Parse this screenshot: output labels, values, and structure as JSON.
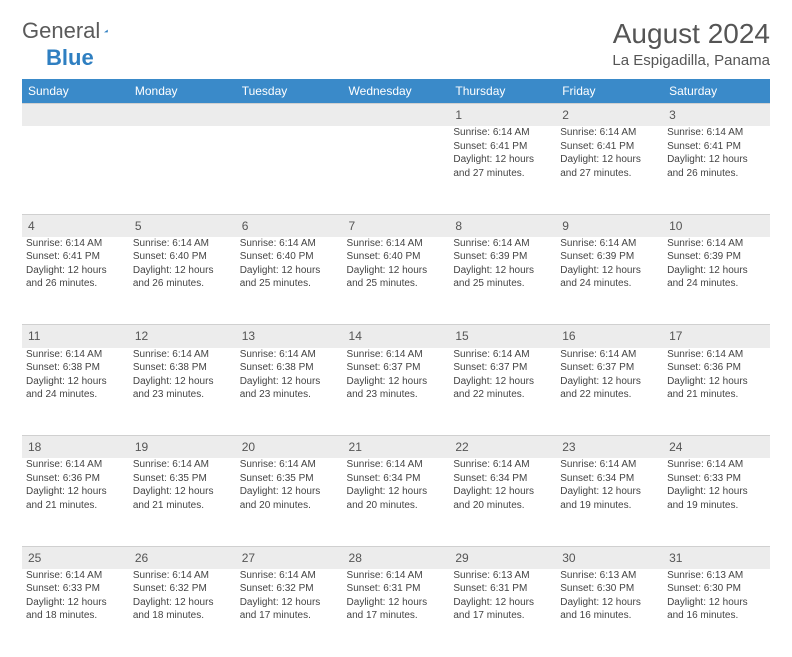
{
  "logo": {
    "text1": "General",
    "text2": "Blue"
  },
  "title": "August 2024",
  "location": "La Espigadilla, Panama",
  "colors": {
    "header_bg": "#3a8ac9",
    "header_text": "#ffffff",
    "daynum_bg": "#ececec",
    "text": "#444444",
    "logo_gray": "#5a5a5a",
    "logo_blue": "#2f7fc1"
  },
  "weekdays": [
    "Sunday",
    "Monday",
    "Tuesday",
    "Wednesday",
    "Thursday",
    "Friday",
    "Saturday"
  ],
  "weeks": [
    {
      "nums": [
        "",
        "",
        "",
        "",
        "1",
        "2",
        "3"
      ],
      "cells": [
        null,
        null,
        null,
        null,
        {
          "sr": "Sunrise: 6:14 AM",
          "ss": "Sunset: 6:41 PM",
          "dl": "Daylight: 12 hours and 27 minutes."
        },
        {
          "sr": "Sunrise: 6:14 AM",
          "ss": "Sunset: 6:41 PM",
          "dl": "Daylight: 12 hours and 27 minutes."
        },
        {
          "sr": "Sunrise: 6:14 AM",
          "ss": "Sunset: 6:41 PM",
          "dl": "Daylight: 12 hours and 26 minutes."
        }
      ]
    },
    {
      "nums": [
        "4",
        "5",
        "6",
        "7",
        "8",
        "9",
        "10"
      ],
      "cells": [
        {
          "sr": "Sunrise: 6:14 AM",
          "ss": "Sunset: 6:41 PM",
          "dl": "Daylight: 12 hours and 26 minutes."
        },
        {
          "sr": "Sunrise: 6:14 AM",
          "ss": "Sunset: 6:40 PM",
          "dl": "Daylight: 12 hours and 26 minutes."
        },
        {
          "sr": "Sunrise: 6:14 AM",
          "ss": "Sunset: 6:40 PM",
          "dl": "Daylight: 12 hours and 25 minutes."
        },
        {
          "sr": "Sunrise: 6:14 AM",
          "ss": "Sunset: 6:40 PM",
          "dl": "Daylight: 12 hours and 25 minutes."
        },
        {
          "sr": "Sunrise: 6:14 AM",
          "ss": "Sunset: 6:39 PM",
          "dl": "Daylight: 12 hours and 25 minutes."
        },
        {
          "sr": "Sunrise: 6:14 AM",
          "ss": "Sunset: 6:39 PM",
          "dl": "Daylight: 12 hours and 24 minutes."
        },
        {
          "sr": "Sunrise: 6:14 AM",
          "ss": "Sunset: 6:39 PM",
          "dl": "Daylight: 12 hours and 24 minutes."
        }
      ]
    },
    {
      "nums": [
        "11",
        "12",
        "13",
        "14",
        "15",
        "16",
        "17"
      ],
      "cells": [
        {
          "sr": "Sunrise: 6:14 AM",
          "ss": "Sunset: 6:38 PM",
          "dl": "Daylight: 12 hours and 24 minutes."
        },
        {
          "sr": "Sunrise: 6:14 AM",
          "ss": "Sunset: 6:38 PM",
          "dl": "Daylight: 12 hours and 23 minutes."
        },
        {
          "sr": "Sunrise: 6:14 AM",
          "ss": "Sunset: 6:38 PM",
          "dl": "Daylight: 12 hours and 23 minutes."
        },
        {
          "sr": "Sunrise: 6:14 AM",
          "ss": "Sunset: 6:37 PM",
          "dl": "Daylight: 12 hours and 23 minutes."
        },
        {
          "sr": "Sunrise: 6:14 AM",
          "ss": "Sunset: 6:37 PM",
          "dl": "Daylight: 12 hours and 22 minutes."
        },
        {
          "sr": "Sunrise: 6:14 AM",
          "ss": "Sunset: 6:37 PM",
          "dl": "Daylight: 12 hours and 22 minutes."
        },
        {
          "sr": "Sunrise: 6:14 AM",
          "ss": "Sunset: 6:36 PM",
          "dl": "Daylight: 12 hours and 21 minutes."
        }
      ]
    },
    {
      "nums": [
        "18",
        "19",
        "20",
        "21",
        "22",
        "23",
        "24"
      ],
      "cells": [
        {
          "sr": "Sunrise: 6:14 AM",
          "ss": "Sunset: 6:36 PM",
          "dl": "Daylight: 12 hours and 21 minutes."
        },
        {
          "sr": "Sunrise: 6:14 AM",
          "ss": "Sunset: 6:35 PM",
          "dl": "Daylight: 12 hours and 21 minutes."
        },
        {
          "sr": "Sunrise: 6:14 AM",
          "ss": "Sunset: 6:35 PM",
          "dl": "Daylight: 12 hours and 20 minutes."
        },
        {
          "sr": "Sunrise: 6:14 AM",
          "ss": "Sunset: 6:34 PM",
          "dl": "Daylight: 12 hours and 20 minutes."
        },
        {
          "sr": "Sunrise: 6:14 AM",
          "ss": "Sunset: 6:34 PM",
          "dl": "Daylight: 12 hours and 20 minutes."
        },
        {
          "sr": "Sunrise: 6:14 AM",
          "ss": "Sunset: 6:34 PM",
          "dl": "Daylight: 12 hours and 19 minutes."
        },
        {
          "sr": "Sunrise: 6:14 AM",
          "ss": "Sunset: 6:33 PM",
          "dl": "Daylight: 12 hours and 19 minutes."
        }
      ]
    },
    {
      "nums": [
        "25",
        "26",
        "27",
        "28",
        "29",
        "30",
        "31"
      ],
      "cells": [
        {
          "sr": "Sunrise: 6:14 AM",
          "ss": "Sunset: 6:33 PM",
          "dl": "Daylight: 12 hours and 18 minutes."
        },
        {
          "sr": "Sunrise: 6:14 AM",
          "ss": "Sunset: 6:32 PM",
          "dl": "Daylight: 12 hours and 18 minutes."
        },
        {
          "sr": "Sunrise: 6:14 AM",
          "ss": "Sunset: 6:32 PM",
          "dl": "Daylight: 12 hours and 17 minutes."
        },
        {
          "sr": "Sunrise: 6:14 AM",
          "ss": "Sunset: 6:31 PM",
          "dl": "Daylight: 12 hours and 17 minutes."
        },
        {
          "sr": "Sunrise: 6:13 AM",
          "ss": "Sunset: 6:31 PM",
          "dl": "Daylight: 12 hours and 17 minutes."
        },
        {
          "sr": "Sunrise: 6:13 AM",
          "ss": "Sunset: 6:30 PM",
          "dl": "Daylight: 12 hours and 16 minutes."
        },
        {
          "sr": "Sunrise: 6:13 AM",
          "ss": "Sunset: 6:30 PM",
          "dl": "Daylight: 12 hours and 16 minutes."
        }
      ]
    }
  ]
}
